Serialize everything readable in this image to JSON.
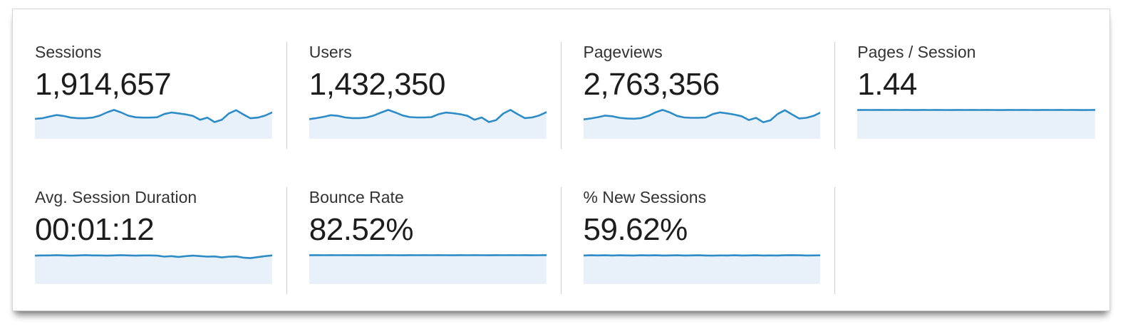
{
  "panel": {
    "cards": [
      {
        "id": "sessions",
        "label": "Sessions",
        "value": "1,914,657"
      },
      {
        "id": "users",
        "label": "Users",
        "value": "1,432,350"
      },
      {
        "id": "pageviews",
        "label": "Pageviews",
        "value": "2,763,356"
      },
      {
        "id": "pages-per-session",
        "label": "Pages / Session",
        "value": "1.44"
      },
      {
        "id": "avg-session-duration",
        "label": "Avg. Session Duration",
        "value": "00:01:12"
      },
      {
        "id": "bounce-rate",
        "label": "Bounce Rate",
        "value": "82.52%"
      },
      {
        "id": "new-sessions",
        "label": "% New Sessions",
        "value": "59.62%"
      }
    ]
  },
  "colors": {
    "sparkline_line": "#2e8bc5",
    "sparkline_fill": "#e8f1fa",
    "divider": "#cccccc",
    "panel_border": "#d6d6d6"
  },
  "chart_data": [
    {
      "type": "area",
      "title": "Sessions",
      "legend": false,
      "grid": false,
      "baseline": 0,
      "values": [
        50,
        52,
        57,
        62,
        59,
        54,
        52,
        52,
        54,
        60,
        70,
        78,
        70,
        60,
        55,
        54,
        54,
        55,
        65,
        70,
        67,
        64,
        59,
        47,
        54,
        40,
        47,
        67,
        77,
        64,
        52,
        54,
        60,
        70
      ]
    },
    {
      "type": "area",
      "title": "Users",
      "legend": false,
      "grid": false,
      "baseline": 0,
      "values": [
        48,
        51,
        55,
        60,
        58,
        53,
        51,
        51,
        53,
        59,
        68,
        76,
        68,
        59,
        54,
        53,
        53,
        54,
        63,
        68,
        66,
        63,
        58,
        46,
        53,
        39,
        45,
        65,
        76,
        63,
        51,
        53,
        59,
        69
      ]
    },
    {
      "type": "area",
      "title": "Pageviews",
      "legend": false,
      "grid": false,
      "baseline": 0,
      "values": [
        49,
        52,
        56,
        61,
        59,
        54,
        52,
        51,
        53,
        60,
        71,
        79,
        71,
        60,
        55,
        54,
        54,
        55,
        66,
        71,
        68,
        64,
        59,
        47,
        54,
        40,
        46,
        66,
        78,
        65,
        52,
        54,
        60,
        71
      ]
    },
    {
      "type": "area",
      "title": "Pages / Session",
      "legend": false,
      "grid": false,
      "baseline": 0,
      "values": [
        99.5,
        100,
        99.7,
        100,
        99.6,
        100,
        99.8,
        100,
        99.5,
        100,
        99.7,
        100,
        99.8,
        99.5,
        100,
        99.7,
        100,
        99.6,
        100,
        99.8,
        99.5,
        100,
        99.7,
        100,
        99.8,
        99.5,
        100,
        99.6,
        100,
        99.8,
        100,
        99.5,
        99.8,
        100
      ]
    },
    {
      "type": "area",
      "title": "Avg. Session Duration",
      "legend": false,
      "grid": false,
      "baseline": 0,
      "values": [
        97,
        98,
        98,
        99,
        98,
        97,
        98,
        99,
        98,
        98,
        97,
        98,
        99,
        98,
        97,
        98,
        98,
        97,
        93,
        95,
        92,
        95,
        97,
        95,
        93,
        94,
        90,
        93,
        94,
        89,
        87,
        91,
        95,
        98
      ]
    },
    {
      "type": "area",
      "title": "Bounce Rate",
      "legend": false,
      "grid": false,
      "baseline": 0,
      "values": [
        99.5,
        100,
        99.8,
        100,
        99.6,
        100,
        99.8,
        100,
        99.5,
        100,
        99.7,
        100,
        99.8,
        99.5,
        100,
        99.7,
        100,
        99.6,
        100,
        99.8,
        99.5,
        100,
        99.7,
        100,
        99.8,
        99.5,
        100,
        99.6,
        100,
        99.8,
        100,
        99.5,
        99.8,
        100
      ]
    },
    {
      "type": "area",
      "title": "% New Sessions",
      "legend": false,
      "grid": false,
      "baseline": 0,
      "values": [
        98,
        99,
        98.5,
        99,
        98,
        99,
        98.5,
        98,
        99,
        98.5,
        99,
        98,
        98.5,
        99,
        98,
        98.5,
        99,
        98,
        97.5,
        98.5,
        98,
        99,
        98,
        98.5,
        99,
        98,
        98.5,
        98,
        99,
        99.5,
        99,
        98,
        98.5,
        99
      ]
    }
  ]
}
